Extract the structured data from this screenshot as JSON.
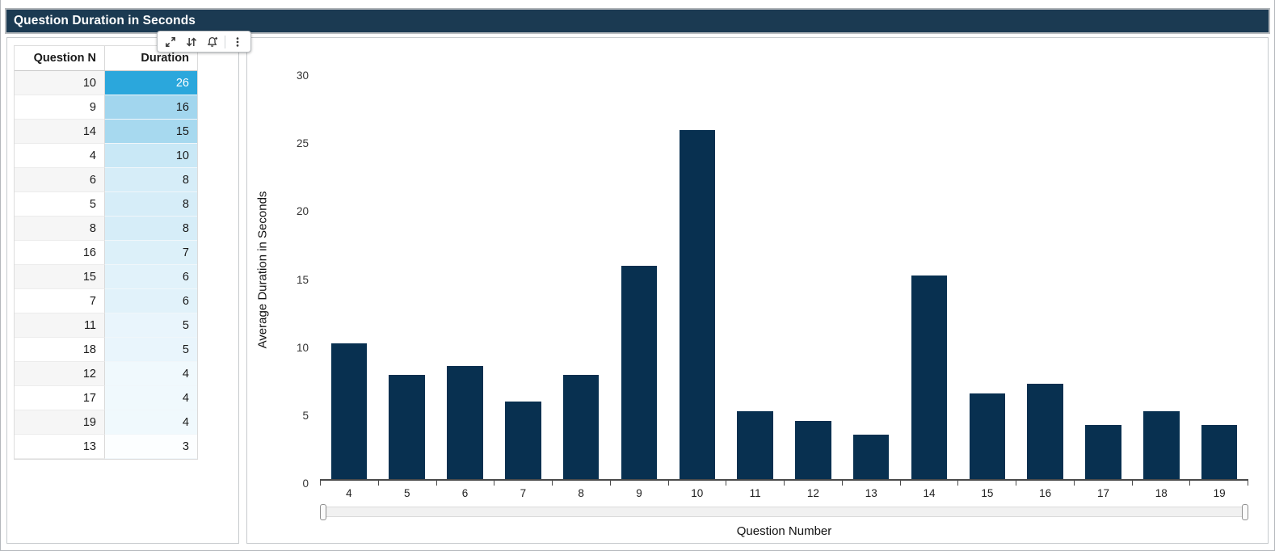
{
  "title_bar": {
    "title": "Question Duration in Seconds"
  },
  "toolbar": {
    "icons": [
      {
        "name": "maximize-icon"
      },
      {
        "name": "sort-arrows-icon"
      },
      {
        "name": "alert-bell-add-icon"
      },
      {
        "name": "menu-kebab-icon"
      }
    ]
  },
  "table": {
    "columns": {
      "question": "Question N",
      "duration": "Duration"
    },
    "rows": [
      {
        "question": "10",
        "duration": "26",
        "fill": "#2ba7dc",
        "text_color": "#ffffff"
      },
      {
        "question": "9",
        "duration": "16",
        "fill": "#a2d6ee"
      },
      {
        "question": "14",
        "duration": "15",
        "fill": "#a7d9ef"
      },
      {
        "question": "4",
        "duration": "10",
        "fill": "#c9e8f6"
      },
      {
        "question": "6",
        "duration": "8",
        "fill": "#d6edf8"
      },
      {
        "question": "5",
        "duration": "8",
        "fill": "#d6edf8"
      },
      {
        "question": "8",
        "duration": "8",
        "fill": "#d6edf8"
      },
      {
        "question": "16",
        "duration": "7",
        "fill": "#dcf0f9"
      },
      {
        "question": "15",
        "duration": "6",
        "fill": "#e1f2fa"
      },
      {
        "question": "7",
        "duration": "6",
        "fill": "#e1f2fa"
      },
      {
        "question": "11",
        "duration": "5",
        "fill": "#e9f5fc"
      },
      {
        "question": "18",
        "duration": "5",
        "fill": "#e9f5fc"
      },
      {
        "question": "12",
        "duration": "4",
        "fill": "#f0f9fd"
      },
      {
        "question": "17",
        "duration": "4",
        "fill": "#f0f9fd"
      },
      {
        "question": "19",
        "duration": "4",
        "fill": "#f0f9fd"
      },
      {
        "question": "13",
        "duration": "3",
        "fill": "#fcfeff"
      }
    ]
  },
  "chart_data": {
    "type": "bar",
    "title": "",
    "xlabel": "Question Number",
    "ylabel": "Average Duration in Seconds",
    "categories": [
      "4",
      "5",
      "6",
      "7",
      "8",
      "9",
      "10",
      "11",
      "12",
      "13",
      "14",
      "15",
      "16",
      "17",
      "18",
      "19"
    ],
    "values": [
      10,
      7.7,
      8.3,
      5.7,
      7.7,
      15.7,
      25.7,
      5,
      4.3,
      3.3,
      15,
      6.3,
      7,
      4,
      5,
      4
    ],
    "yticks": [
      0,
      5,
      10,
      15,
      20,
      25,
      30
    ],
    "ylim": [
      0,
      30
    ],
    "bar_color": "#083050",
    "grid": false,
    "legend": false,
    "x_scrollbar": true
  },
  "colors": {
    "title_bar_bg": "#1b3a52",
    "bar_fill": "#083050",
    "heatmap_max": "#2ba7dc",
    "panel_border": "#c6cacd"
  }
}
